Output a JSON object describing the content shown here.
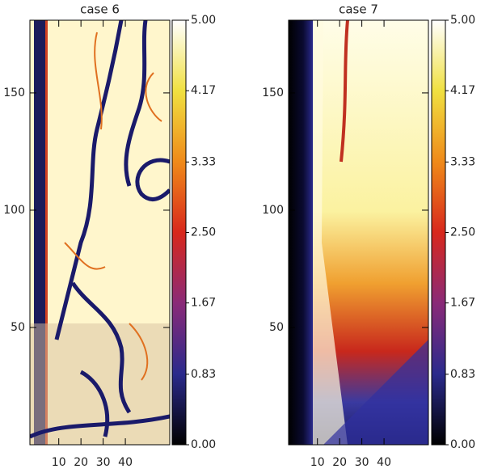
{
  "chart_data": [
    {
      "type": "heatmap",
      "title": "case 6",
      "xlim": [
        -3,
        60
      ],
      "xticks": [
        10,
        20,
        30,
        40
      ],
      "ylim": [
        0,
        181
      ],
      "yticks": [
        50,
        100,
        150
      ],
      "colorbar_lim": [
        0,
        5
      ],
      "colorbar_ticks": [
        {
          "value": 0,
          "label": "0.00"
        },
        0.83,
        1.67,
        {
          "value": 2.5,
          "label": "2.50"
        },
        3.33,
        4.17,
        {
          "value": 5,
          "label": "5.00"
        }
      ],
      "colormap": [
        "#000000",
        "#2a2a8c",
        "#8a2a78",
        "#d8281c",
        "#ef8a1a",
        "#f0e040",
        "#ffffff"
      ]
    },
    {
      "type": "heatmap",
      "title": "case 7",
      "xlim": [
        -3,
        60
      ],
      "xticks": [
        10,
        20,
        30,
        40
      ],
      "ylim": [
        0,
        181
      ],
      "yticks": [
        50,
        100,
        150
      ],
      "colorbar_lim": [
        0,
        5
      ],
      "colorbar_ticks": [
        {
          "value": 0,
          "label": "0.00"
        },
        0.83,
        1.67,
        {
          "value": 2.5,
          "label": "2.50"
        },
        3.33,
        4.17,
        {
          "value": 5,
          "label": "5.00"
        }
      ],
      "colormap": [
        "#000000",
        "#2a2a8c",
        "#8a2a78",
        "#d8281c",
        "#ef8a1a",
        "#f0e040",
        "#ffffff"
      ]
    }
  ]
}
